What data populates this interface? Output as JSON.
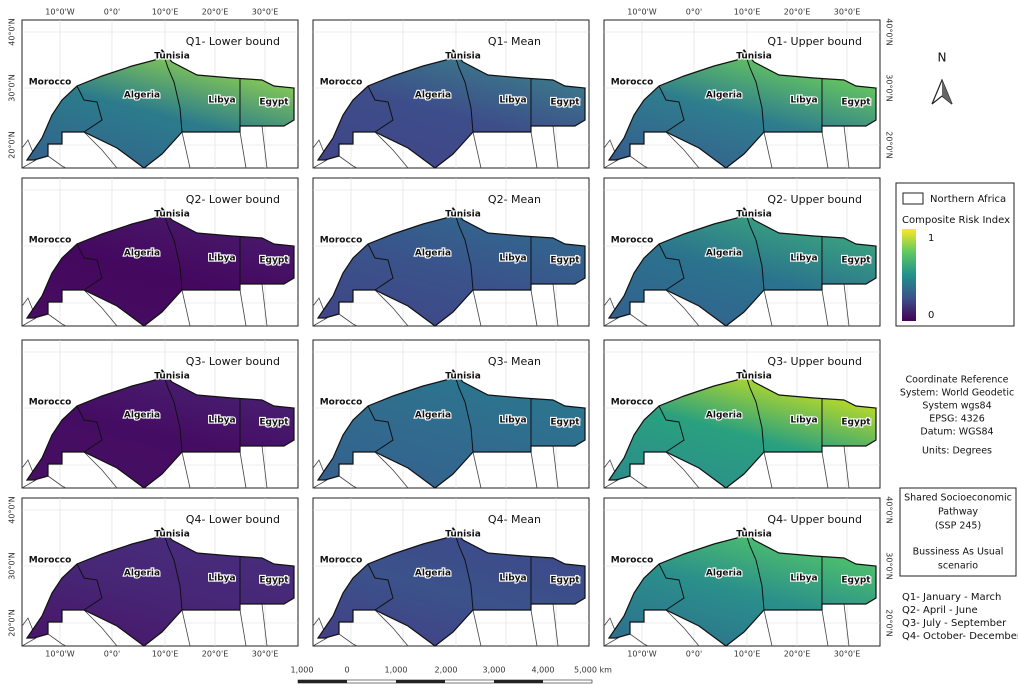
{
  "panels": [
    {
      "title": "Q1- Lower bound"
    },
    {
      "title": "Q1- Mean"
    },
    {
      "title": "Q1- Upper bound"
    },
    {
      "title": "Q2- Lower bound"
    },
    {
      "title": "Q2- Mean"
    },
    {
      "title": "Q2- Upper bound"
    },
    {
      "title": "Q3- Lower bound"
    },
    {
      "title": "Q3- Mean"
    },
    {
      "title": "Q3- Upper bound"
    },
    {
      "title": "Q4- Lower bound"
    },
    {
      "title": "Q4- Mean"
    },
    {
      "title": "Q4- Upper bound"
    }
  ],
  "countries": [
    "Morocco",
    "Algeria",
    "Tunisia",
    "Libya",
    "Egypt"
  ],
  "longitude_labels": [
    "10°0'W",
    "0°0'",
    "10°0'E",
    "20°0'E",
    "30°0'E"
  ],
  "latitude_labels": [
    "40°0'N",
    "30°0'N",
    "20°0'N"
  ],
  "north": "N",
  "legend": {
    "boundary": "Northern Africa",
    "title": "Composite Risk Index",
    "max": "1",
    "min": "0"
  },
  "crs": [
    "Coordinate Reference",
    "System: World Geodetic",
    "System wgs84",
    "EPSG: 4326",
    "Datum: WGS84"
  ],
  "units": "Units: Degrees",
  "scenario": [
    "Shared Socioeconomic",
    "Pathway",
    "(SSP 245)",
    "Bussiness As Usual",
    "scenario"
  ],
  "quarters": [
    "Q1- January - March",
    "Q2- April - June",
    "Q3- July - September",
    "Q4- October- December"
  ],
  "scale": [
    "1,000",
    "0",
    "1,000",
    "2,000",
    "3,000",
    "4,000",
    "5,000 km"
  ]
}
